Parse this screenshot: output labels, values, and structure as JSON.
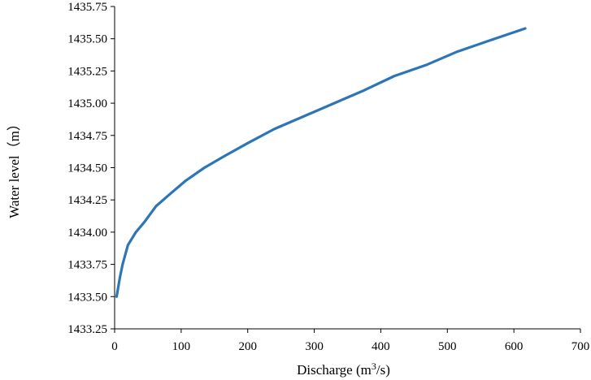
{
  "chart_data": {
    "type": "line",
    "title": "",
    "xlabel": "Discharge (m3/s)",
    "xlabel_parts": {
      "before": "Discharge (m",
      "sup": "3",
      "after": "/s)"
    },
    "ylabel": "Water level（m）",
    "xlim": [
      0,
      700
    ],
    "ylim": [
      1433.25,
      1435.75
    ],
    "x_ticks": [
      "0",
      "100",
      "200",
      "300",
      "400",
      "500",
      "600",
      "700"
    ],
    "y_ticks": [
      "1433.25",
      "1433.50",
      "1433.75",
      "1434.00",
      "1434.25",
      "1434.50",
      "1434.75",
      "1435.00",
      "1435.25",
      "1435.50",
      "1435.75"
    ],
    "grid": false,
    "legend": "none",
    "series": [
      {
        "color": "#2E75B6",
        "x": [
          3,
          5,
          8,
          12,
          20,
          32,
          45,
          62,
          82,
          107,
          135,
          165,
          200,
          240,
          285,
          330,
          375,
          420,
          470,
          515,
          560,
          617
        ],
        "y": [
          1433.5,
          1433.56,
          1433.65,
          1433.75,
          1433.9,
          1434.0,
          1434.08,
          1434.2,
          1434.29,
          1434.4,
          1434.5,
          1434.59,
          1434.69,
          1434.8,
          1434.9,
          1435.0,
          1435.1,
          1435.21,
          1435.3,
          1435.4,
          1435.48,
          1435.58
        ]
      }
    ]
  }
}
